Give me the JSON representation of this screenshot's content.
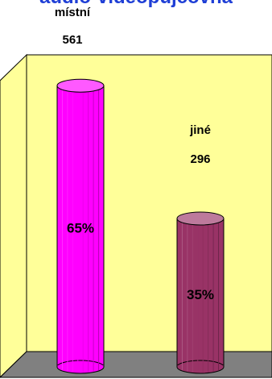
{
  "chart_data": {
    "type": "bar",
    "title": "audio-videopůjčovna",
    "categories": [
      "místní",
      "jiné"
    ],
    "values": [
      561,
      296
    ],
    "percent_labels": [
      "65%",
      "35%"
    ],
    "ylim": [
      0,
      600
    ],
    "grid": false,
    "legend": "none",
    "colors": {
      "wall": "#ffff99",
      "floor": "#808080",
      "series": [
        "#ff00ff",
        "#993366"
      ],
      "title": "#1f3fd6"
    }
  }
}
